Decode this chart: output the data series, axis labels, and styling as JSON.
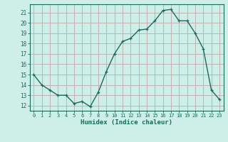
{
  "x": [
    0,
    1,
    2,
    3,
    4,
    5,
    6,
    7,
    8,
    9,
    10,
    11,
    12,
    13,
    14,
    15,
    16,
    17,
    18,
    19,
    20,
    21,
    22,
    23
  ],
  "y": [
    15,
    14,
    13.5,
    13,
    13,
    12.2,
    12.4,
    11.9,
    13.3,
    15.3,
    17,
    18.2,
    18.5,
    19.3,
    19.4,
    20.2,
    21.2,
    21.3,
    20.2,
    20.2,
    19,
    17.5,
    13.5,
    12.6
  ],
  "line_color": "#1a6b5a",
  "marker_color": "#1a6b5a",
  "bg_color": "#ceeee8",
  "major_grid_color": "#c0a8a8",
  "tick_color": "#1a6b5a",
  "label_color": "#1a6b5a",
  "xlabel": "Humidex (Indice chaleur)",
  "ylabel_ticks": [
    12,
    13,
    14,
    15,
    16,
    17,
    18,
    19,
    20,
    21
  ],
  "xticks": [
    0,
    1,
    2,
    3,
    4,
    5,
    6,
    7,
    8,
    9,
    10,
    11,
    12,
    13,
    14,
    15,
    16,
    17,
    18,
    19,
    20,
    21,
    22,
    23
  ],
  "xlim": [
    -0.5,
    23.5
  ],
  "ylim": [
    11.5,
    21.8
  ],
  "font_family": "monospace"
}
